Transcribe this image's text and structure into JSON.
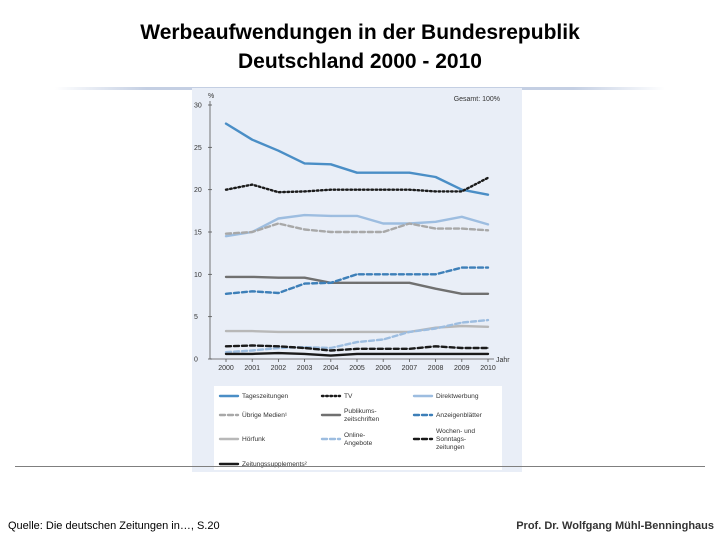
{
  "slide": {
    "title_line1": "Werbeaufwendungen in der Bundesrepublik",
    "title_line2": "Deutschland 2000  - 2010",
    "source": "Quelle: Die deutschen Zeitungen in…, S.20",
    "author": "Prof. Dr. Wolfgang Mühl-Benninghaus"
  },
  "chart_data": {
    "type": "line",
    "title": "Gesamt: 100%",
    "ylabel": "%",
    "xlabel": "Jahr",
    "ylim": [
      0,
      30
    ],
    "yticks": [
      0,
      5,
      10,
      15,
      20,
      25,
      30
    ],
    "x": [
      "2000",
      "2001",
      "2002",
      "2003",
      "2004",
      "2005",
      "2006",
      "2007",
      "2008",
      "2009",
      "2010"
    ],
    "series": [
      {
        "name": "Tageszeitungen",
        "color": "#4a8ec6",
        "dash": "solid",
        "values": [
          27.8,
          25.9,
          24.6,
          23.1,
          23.0,
          22.0,
          22.0,
          22.0,
          21.5,
          20.0,
          19.4
        ]
      },
      {
        "name": "TV",
        "color": "#1a1a1a",
        "dash": "dot",
        "values": [
          20.0,
          20.6,
          19.7,
          19.8,
          20.0,
          20.0,
          20.0,
          20.0,
          19.8,
          19.8,
          21.4
        ]
      },
      {
        "name": "Direktwerbung",
        "color": "#9dbde0",
        "dash": "solid",
        "values": [
          14.5,
          15.0,
          16.6,
          17.0,
          16.9,
          16.9,
          16.0,
          16.0,
          16.2,
          16.8,
          15.9
        ]
      },
      {
        "name": "Übrige Medien¹",
        "color": "#a8a8a8",
        "dash": "dash",
        "values": [
          14.8,
          15.0,
          16.0,
          15.3,
          15.0,
          15.0,
          15.0,
          16.0,
          15.4,
          15.4,
          15.2
        ]
      },
      {
        "name": "Publikumszeitschriften",
        "color": "#707070",
        "dash": "solid",
        "values": [
          9.7,
          9.7,
          9.6,
          9.6,
          9.0,
          9.0,
          9.0,
          9.0,
          8.3,
          7.7,
          7.7
        ]
      },
      {
        "name": "Anzeigenblätter",
        "color": "#3d7fb8",
        "dash": "dash",
        "values": [
          7.7,
          8.0,
          7.8,
          8.9,
          9.0,
          10.0,
          10.0,
          10.0,
          10.0,
          10.8,
          10.8
        ]
      },
      {
        "name": "Hörfunk",
        "color": "#b8b8b8",
        "dash": "solid",
        "values": [
          3.3,
          3.3,
          3.2,
          3.2,
          3.2,
          3.2,
          3.2,
          3.2,
          3.7,
          3.9,
          3.8
        ]
      },
      {
        "name": "Online-Angebote",
        "color": "#9dbde0",
        "dash": "dash",
        "values": [
          0.8,
          1.0,
          1.3,
          1.4,
          1.3,
          2.0,
          2.3,
          3.2,
          3.6,
          4.3,
          4.6
        ]
      },
      {
        "name": "Wochen- und Sonntagszeitungen",
        "color": "#1a1a1a",
        "dash": "dash",
        "values": [
          1.5,
          1.6,
          1.5,
          1.3,
          1.0,
          1.2,
          1.2,
          1.2,
          1.5,
          1.3,
          1.3
        ]
      },
      {
        "name": "Zeitungssupplements²",
        "color": "#1a1a1a",
        "dash": "solid",
        "values": [
          0.6,
          0.6,
          0.7,
          0.6,
          0.4,
          0.6,
          0.6,
          0.6,
          0.6,
          0.6,
          0.6
        ]
      }
    ],
    "legend": [
      {
        "label_lines": [
          "Tageszeitungen"
        ],
        "color": "#4a8ec6",
        "dash": "solid"
      },
      {
        "label_lines": [
          "TV"
        ],
        "color": "#1a1a1a",
        "dash": "dot"
      },
      {
        "label_lines": [
          "Direktwerbung"
        ],
        "color": "#9dbde0",
        "dash": "solid"
      },
      {
        "label_lines": [
          "Übrige Medien¹"
        ],
        "color": "#a8a8a8",
        "dash": "dash"
      },
      {
        "label_lines": [
          "Publikums-",
          "zeitschriften"
        ],
        "color": "#707070",
        "dash": "solid"
      },
      {
        "label_lines": [
          "Anzeigenblätter"
        ],
        "color": "#3d7fb8",
        "dash": "dash"
      },
      {
        "label_lines": [
          "Hörfunk"
        ],
        "color": "#b8b8b8",
        "dash": "solid"
      },
      {
        "label_lines": [
          "Online-",
          "Angebote"
        ],
        "color": "#9dbde0",
        "dash": "dash"
      },
      {
        "label_lines": [
          "Wochen- und",
          "Sonntags-",
          "zeitungen"
        ],
        "color": "#1a1a1a",
        "dash": "dash"
      },
      {
        "label_lines": [
          "Zeitungssupplements²"
        ],
        "color": "#1a1a1a",
        "dash": "solid"
      }
    ],
    "legend_position": "bottom"
  }
}
